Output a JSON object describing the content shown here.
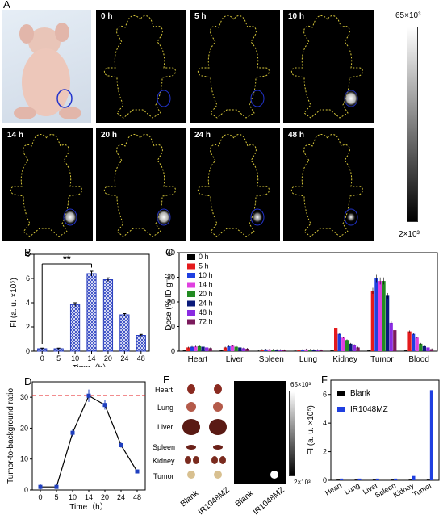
{
  "panel_labels": {
    "A": "A",
    "B": "B",
    "C": "C",
    "D": "D",
    "E": "E",
    "F": "F"
  },
  "imaging": {
    "frames": [
      "0 h",
      "5 h",
      "10 h",
      "14 h",
      "20 h",
      "24 h",
      "48 h"
    ],
    "intensity": [
      0,
      0,
      0.9,
      0.8,
      0.85,
      0.6,
      0.45
    ],
    "colorbar_max": "65×10³",
    "colorbar_min": "2×10³"
  },
  "chart_data": [
    {
      "id": "B",
      "type": "bar",
      "categories": [
        "0",
        "5",
        "10",
        "14",
        "20",
        "24",
        "48"
      ],
      "values": [
        0.2,
        0.2,
        3.85,
        6.4,
        5.9,
        3.0,
        1.3
      ],
      "errors": [
        0.05,
        0.05,
        0.15,
        0.2,
        0.15,
        0.1,
        0.08
      ],
      "ylabel": "FI (a. u. ×10⁵)",
      "xlabel": "Time（h）",
      "ylim": [
        0,
        8
      ],
      "yticks": [
        "0",
        "2",
        "4",
        "6",
        "8"
      ],
      "annotation": "**",
      "color": "#2a3fbf"
    },
    {
      "id": "C",
      "type": "bar",
      "categories": [
        "Heart",
        "Liver",
        "Spleen",
        "Lung",
        "Kidney",
        "Tumor",
        "Blood"
      ],
      "series": [
        {
          "name": "0 h",
          "color": "#000000",
          "values": [
            0.3,
            0.3,
            0.2,
            0.2,
            0.3,
            0.3,
            0.3
          ]
        },
        {
          "name": "5 h",
          "color": "#e41a1c",
          "values": [
            1.5,
            1.5,
            0.6,
            0.6,
            9.5,
            24.5,
            8.0
          ]
        },
        {
          "name": "10 h",
          "color": "#1f3fe0",
          "values": [
            1.8,
            2.0,
            0.7,
            0.6,
            7.0,
            29.5,
            7.0
          ]
        },
        {
          "name": "14 h",
          "color": "#e040e0",
          "values": [
            1.9,
            2.2,
            0.7,
            0.7,
            5.5,
            28.5,
            5.5
          ]
        },
        {
          "name": "20 h",
          "color": "#228b22",
          "values": [
            2.0,
            1.8,
            0.6,
            0.6,
            4.5,
            28.5,
            3.0
          ]
        },
        {
          "name": "24 h",
          "color": "#0a1a7a",
          "values": [
            1.8,
            1.5,
            0.5,
            0.5,
            3.0,
            22.5,
            2.0
          ]
        },
        {
          "name": "48 h",
          "color": "#8a2be2",
          "values": [
            1.5,
            1.2,
            0.5,
            0.5,
            2.5,
            11.5,
            1.5
          ]
        },
        {
          "name": "72 h",
          "color": "#7b1a5c",
          "values": [
            1.2,
            1.0,
            0.4,
            0.4,
            1.5,
            8.5,
            0.8
          ]
        }
      ],
      "ylabel": "Dose (% ID g⁻¹)",
      "ylim": [
        0,
        40
      ],
      "yticks": [
        "0",
        "10",
        "20",
        "30",
        "40"
      ]
    },
    {
      "id": "D",
      "type": "line",
      "x": [
        "0",
        "5",
        "10",
        "14",
        "20",
        "24",
        "48"
      ],
      "values": [
        1,
        1,
        18.5,
        30.5,
        27.5,
        14.5,
        6
      ],
      "errors": [
        1,
        0.3,
        1.2,
        2.0,
        1.5,
        0.8,
        0.4
      ],
      "reference_line": 30.5,
      "ylabel": "Tumor-to-background ratio",
      "xlabel": "Time（h）",
      "ylim": [
        0,
        35
      ],
      "yticks": [
        "0",
        "10",
        "20",
        "30"
      ],
      "color": "#1f3fbf"
    },
    {
      "id": "F",
      "type": "bar",
      "categories": [
        "Heart",
        "Lung",
        "Liver",
        "Spleen",
        "Kidney",
        "Tumor"
      ],
      "series": [
        {
          "name": "Blank",
          "color": "#000000",
          "values": [
            0.05,
            0.05,
            0.05,
            0.05,
            0.05,
            0.05
          ]
        },
        {
          "name": "IR1048MZ",
          "color": "#1f3fe0",
          "values": [
            0.12,
            0.12,
            0.12,
            0.12,
            0.3,
            6.3
          ]
        }
      ],
      "ylabel": "FI (a. u. ×10⁵)",
      "ylim": [
        0,
        7
      ],
      "yticks": [
        "0",
        "2",
        "4",
        "6"
      ]
    }
  ],
  "panel_e": {
    "organs": [
      "Heart",
      "Lung",
      "Liver",
      "Spleen",
      "Kidney",
      "Tumor"
    ],
    "xlabels": [
      "Blank",
      "IR1048MZ",
      "Blank",
      "IR1048MZ"
    ],
    "colorbar_max": "65×10³",
    "colorbar_min": "2×10³"
  }
}
